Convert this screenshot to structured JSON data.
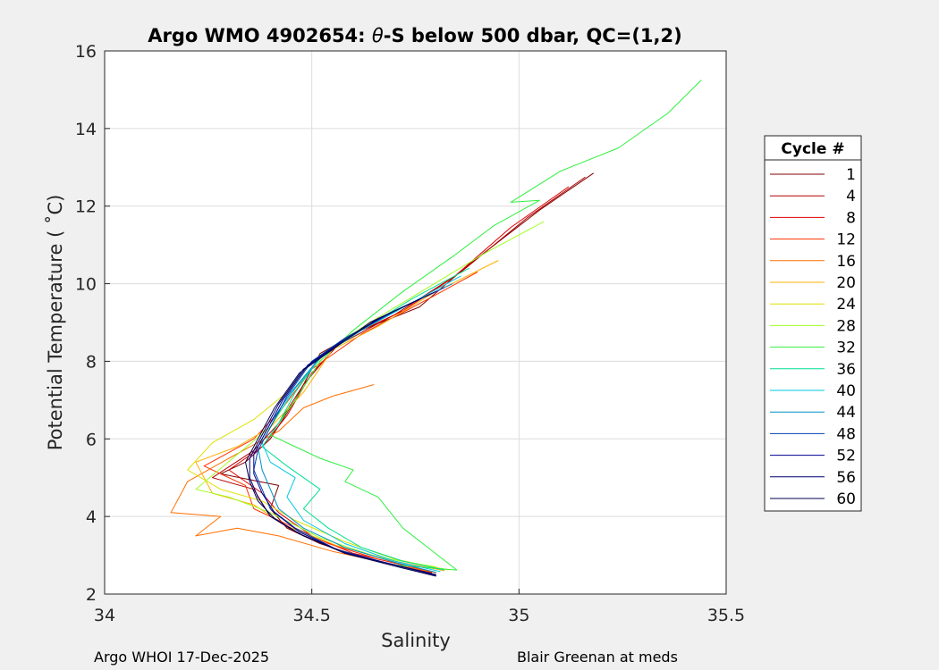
{
  "chart_data": {
    "type": "line",
    "title_main": "Argo WMO 4902654: ",
    "title_theta": "θ",
    "title_rest": "-S below 500 dbar,  QC=(1,2)",
    "xlabel": "Salinity",
    "ylabel": "Potential Temperature ( ˚C)",
    "xlim": [
      34,
      35.5
    ],
    "ylim": [
      2,
      16
    ],
    "xticks": [
      "34",
      "34.5",
      "35",
      "35.5"
    ],
    "yticks": [
      "2",
      "4",
      "6",
      "8",
      "10",
      "12",
      "14",
      "16"
    ],
    "grid": true,
    "legend_title": "Cycle #",
    "legend_position": "right",
    "series": [
      {
        "name": "1",
        "color": "#800000",
        "points": [
          [
            35.18,
            12.85
          ],
          [
            35.05,
            11.9
          ],
          [
            34.88,
            10.5
          ],
          [
            34.76,
            9.4
          ],
          [
            34.62,
            8.8
          ],
          [
            34.52,
            8.2
          ],
          [
            34.46,
            7.0
          ],
          [
            34.4,
            6.0
          ],
          [
            34.34,
            5.4
          ],
          [
            34.28,
            5.1
          ],
          [
            34.42,
            4.8
          ],
          [
            34.4,
            4.2
          ],
          [
            34.44,
            3.7
          ],
          [
            34.52,
            3.3
          ],
          [
            34.62,
            2.95
          ],
          [
            34.72,
            2.7
          ],
          [
            34.8,
            2.5
          ]
        ]
      },
      {
        "name": "4",
        "color": "#b00000",
        "points": [
          [
            35.16,
            12.75
          ],
          [
            35.02,
            11.7
          ],
          [
            34.86,
            10.3
          ],
          [
            34.7,
            9.2
          ],
          [
            34.56,
            8.4
          ],
          [
            34.48,
            7.4
          ],
          [
            34.42,
            6.4
          ],
          [
            34.36,
            5.7
          ],
          [
            34.26,
            5.0
          ],
          [
            34.36,
            4.7
          ],
          [
            34.4,
            4.0
          ],
          [
            34.46,
            3.6
          ],
          [
            34.56,
            3.15
          ],
          [
            34.68,
            2.8
          ],
          [
            34.79,
            2.55
          ]
        ]
      },
      {
        "name": "8",
        "color": "#e00000",
        "points": [
          [
            35.12,
            12.5
          ],
          [
            34.98,
            11.45
          ],
          [
            34.84,
            10.15
          ],
          [
            34.72,
            9.3
          ],
          [
            34.58,
            8.6
          ],
          [
            34.5,
            7.7
          ],
          [
            34.44,
            6.6
          ],
          [
            34.38,
            5.8
          ],
          [
            34.3,
            5.2
          ],
          [
            34.38,
            4.6
          ],
          [
            34.42,
            4.1
          ],
          [
            34.5,
            3.5
          ],
          [
            34.6,
            3.05
          ],
          [
            34.72,
            2.75
          ],
          [
            34.8,
            2.55
          ]
        ]
      },
      {
        "name": "12",
        "color": "#ff3000",
        "points": [
          [
            34.9,
            10.3
          ],
          [
            34.78,
            9.6
          ],
          [
            34.62,
            8.7
          ],
          [
            34.5,
            7.8
          ],
          [
            34.43,
            6.8
          ],
          [
            34.36,
            6.0
          ],
          [
            34.24,
            5.3
          ],
          [
            34.34,
            4.8
          ],
          [
            34.36,
            4.2
          ],
          [
            34.44,
            3.8
          ],
          [
            34.54,
            3.3
          ],
          [
            34.66,
            2.9
          ],
          [
            34.78,
            2.6
          ]
        ]
      },
      {
        "name": "16",
        "color": "#ff7000",
        "points": [
          [
            34.65,
            7.4
          ],
          [
            34.55,
            7.1
          ],
          [
            34.48,
            6.8
          ],
          [
            34.42,
            6.2
          ],
          [
            34.3,
            5.5
          ],
          [
            34.2,
            4.9
          ],
          [
            34.16,
            4.1
          ],
          [
            34.28,
            4.0
          ],
          [
            34.22,
            3.5
          ],
          [
            34.32,
            3.7
          ],
          [
            34.42,
            3.5
          ],
          [
            34.55,
            3.1
          ],
          [
            34.68,
            2.8
          ],
          [
            34.8,
            2.55
          ]
        ]
      },
      {
        "name": "20",
        "color": "#ffb000",
        "points": [
          [
            34.95,
            10.6
          ],
          [
            34.8,
            9.8
          ],
          [
            34.66,
            8.9
          ],
          [
            34.55,
            8.3
          ],
          [
            34.48,
            7.2
          ],
          [
            34.4,
            6.3
          ],
          [
            34.32,
            5.8
          ],
          [
            34.22,
            5.4
          ],
          [
            34.26,
            4.6
          ],
          [
            34.36,
            4.3
          ],
          [
            34.44,
            3.75
          ],
          [
            34.56,
            3.25
          ],
          [
            34.7,
            2.85
          ],
          [
            34.82,
            2.6
          ]
        ]
      },
      {
        "name": "24",
        "color": "#e0e000",
        "points": [
          [
            34.66,
            9.1
          ],
          [
            34.58,
            8.6
          ],
          [
            34.5,
            8.0
          ],
          [
            34.44,
            7.2
          ],
          [
            34.36,
            6.5
          ],
          [
            34.26,
            5.9
          ],
          [
            34.2,
            5.2
          ],
          [
            34.28,
            4.7
          ],
          [
            34.38,
            4.4
          ],
          [
            34.46,
            3.9
          ],
          [
            34.58,
            3.35
          ],
          [
            34.7,
            2.9
          ],
          [
            34.83,
            2.62
          ]
        ]
      },
      {
        "name": "28",
        "color": "#a0ff20",
        "points": [
          [
            35.06,
            11.6
          ],
          [
            34.92,
            10.8
          ],
          [
            34.78,
            9.9
          ],
          [
            34.64,
            9.0
          ],
          [
            34.54,
            8.3
          ],
          [
            34.46,
            7.3
          ],
          [
            34.4,
            6.3
          ],
          [
            34.32,
            5.6
          ],
          [
            34.22,
            4.7
          ],
          [
            34.3,
            4.5
          ],
          [
            34.4,
            4.1
          ],
          [
            34.52,
            3.45
          ],
          [
            34.66,
            2.95
          ],
          [
            34.8,
            2.7
          ]
        ]
      },
      {
        "name": "32",
        "color": "#30f040",
        "points": [
          [
            35.44,
            15.25
          ],
          [
            35.36,
            14.4
          ],
          [
            35.24,
            13.5
          ],
          [
            35.1,
            12.9
          ],
          [
            34.98,
            12.1
          ],
          [
            35.05,
            12.15
          ],
          [
            34.94,
            11.5
          ],
          [
            34.84,
            10.7
          ],
          [
            34.72,
            9.8
          ],
          [
            34.6,
            8.8
          ],
          [
            34.52,
            8.0
          ],
          [
            34.46,
            7.0
          ],
          [
            34.4,
            6.1
          ],
          [
            34.46,
            5.8
          ],
          [
            34.52,
            5.5
          ],
          [
            34.6,
            5.2
          ],
          [
            34.58,
            4.9
          ],
          [
            34.66,
            4.5
          ],
          [
            34.72,
            3.7
          ],
          [
            34.78,
            3.2
          ],
          [
            34.85,
            2.62
          ],
          [
            34.7,
            2.75
          ]
        ]
      },
      {
        "name": "36",
        "color": "#00e090",
        "points": [
          [
            34.88,
            10.4
          ],
          [
            34.74,
            9.6
          ],
          [
            34.62,
            8.8
          ],
          [
            34.52,
            8.1
          ],
          [
            34.46,
            7.2
          ],
          [
            34.42,
            6.4
          ],
          [
            34.38,
            5.8
          ],
          [
            34.44,
            5.3
          ],
          [
            34.52,
            4.7
          ],
          [
            34.48,
            4.2
          ],
          [
            34.54,
            3.7
          ],
          [
            34.62,
            3.2
          ],
          [
            34.72,
            2.85
          ],
          [
            34.82,
            2.62
          ]
        ]
      },
      {
        "name": "40",
        "color": "#00c8e0",
        "points": [
          [
            34.86,
            10.2
          ],
          [
            34.74,
            9.5
          ],
          [
            34.62,
            8.8
          ],
          [
            34.53,
            8.2
          ],
          [
            34.46,
            7.3
          ],
          [
            34.41,
            6.5
          ],
          [
            34.38,
            5.9
          ],
          [
            34.4,
            5.4
          ],
          [
            34.46,
            5.0
          ],
          [
            34.44,
            4.5
          ],
          [
            34.48,
            3.9
          ],
          [
            34.58,
            3.3
          ],
          [
            34.7,
            2.85
          ],
          [
            34.81,
            2.58
          ]
        ]
      },
      {
        "name": "44",
        "color": "#0090c8",
        "points": [
          [
            34.84,
            10.0
          ],
          [
            34.72,
            9.4
          ],
          [
            34.6,
            8.7
          ],
          [
            34.52,
            8.1
          ],
          [
            34.45,
            7.2
          ],
          [
            34.4,
            6.4
          ],
          [
            34.37,
            5.8
          ],
          [
            34.38,
            5.2
          ],
          [
            34.4,
            4.7
          ],
          [
            34.42,
            4.2
          ],
          [
            34.48,
            3.7
          ],
          [
            34.58,
            3.2
          ],
          [
            34.7,
            2.82
          ],
          [
            34.8,
            2.56
          ]
        ]
      },
      {
        "name": "48",
        "color": "#0040b0",
        "points": [
          [
            34.82,
            9.9
          ],
          [
            34.7,
            9.3
          ],
          [
            34.58,
            8.6
          ],
          [
            34.5,
            8.0
          ],
          [
            34.44,
            7.1
          ],
          [
            34.4,
            6.3
          ],
          [
            34.37,
            5.7
          ],
          [
            34.36,
            5.2
          ],
          [
            34.38,
            4.7
          ],
          [
            34.4,
            4.2
          ],
          [
            34.46,
            3.7
          ],
          [
            34.56,
            3.15
          ],
          [
            34.68,
            2.8
          ],
          [
            34.79,
            2.52
          ]
        ]
      },
      {
        "name": "52",
        "color": "#000090",
        "points": [
          [
            34.8,
            9.8
          ],
          [
            34.68,
            9.2
          ],
          [
            34.57,
            8.5
          ],
          [
            34.49,
            7.9
          ],
          [
            34.43,
            7.0
          ],
          [
            34.39,
            6.2
          ],
          [
            34.36,
            5.6
          ],
          [
            34.36,
            5.1
          ],
          [
            34.38,
            4.6
          ],
          [
            34.41,
            4.1
          ],
          [
            34.47,
            3.6
          ],
          [
            34.57,
            3.1
          ],
          [
            34.69,
            2.78
          ],
          [
            34.8,
            2.5
          ]
        ]
      },
      {
        "name": "56",
        "color": "#000070",
        "points": [
          [
            34.78,
            9.7
          ],
          [
            34.66,
            9.1
          ],
          [
            34.56,
            8.4
          ],
          [
            34.48,
            7.8
          ],
          [
            34.42,
            6.9
          ],
          [
            34.38,
            6.1
          ],
          [
            34.35,
            5.5
          ],
          [
            34.35,
            5.0
          ],
          [
            34.37,
            4.5
          ],
          [
            34.4,
            4.0
          ],
          [
            34.47,
            3.55
          ],
          [
            34.58,
            3.05
          ],
          [
            34.7,
            2.75
          ],
          [
            34.8,
            2.48
          ]
        ]
      },
      {
        "name": "60",
        "color": "#000050",
        "points": [
          [
            34.76,
            9.6
          ],
          [
            34.64,
            9.0
          ],
          [
            34.55,
            8.3
          ],
          [
            34.47,
            7.7
          ],
          [
            34.41,
            6.8
          ],
          [
            34.37,
            6.0
          ],
          [
            34.34,
            5.4
          ],
          [
            34.35,
            4.9
          ],
          [
            34.37,
            4.4
          ],
          [
            34.41,
            3.95
          ],
          [
            34.48,
            3.5
          ],
          [
            34.59,
            3.02
          ],
          [
            34.7,
            2.72
          ],
          [
            34.8,
            2.46
          ]
        ]
      }
    ]
  },
  "footer": {
    "left": "Argo WHOI 17-Dec-2025",
    "right": "Blair Greenan at meds"
  }
}
